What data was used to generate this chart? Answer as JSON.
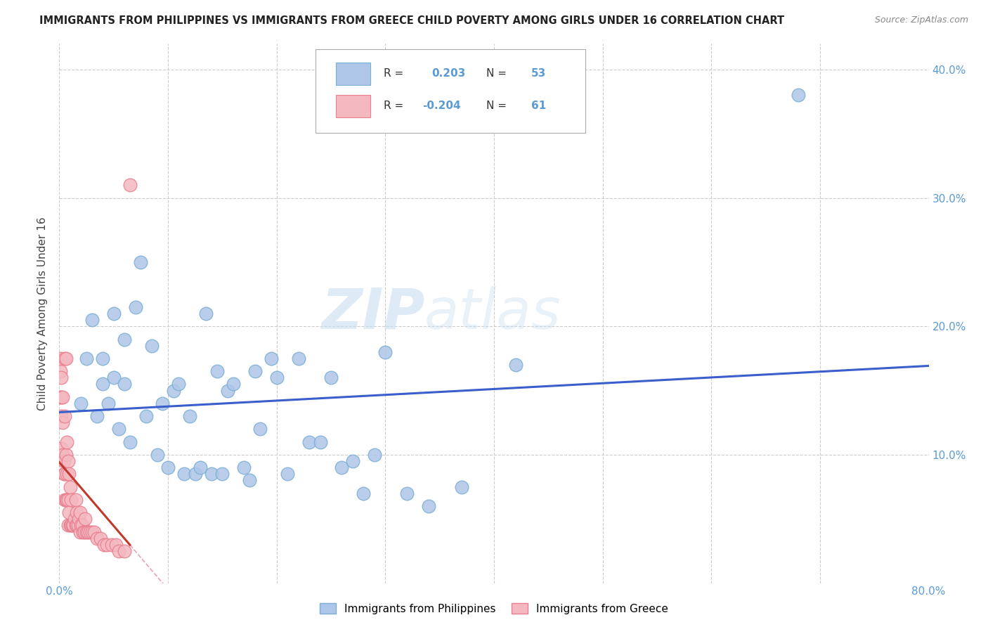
{
  "title": "IMMIGRANTS FROM PHILIPPINES VS IMMIGRANTS FROM GREECE CHILD POVERTY AMONG GIRLS UNDER 16 CORRELATION CHART",
  "source": "Source: ZipAtlas.com",
  "ylabel": "Child Poverty Among Girls Under 16",
  "xlim": [
    0,
    0.8
  ],
  "ylim": [
    0,
    0.42
  ],
  "xtick_positions": [
    0.0,
    0.1,
    0.2,
    0.3,
    0.4,
    0.5,
    0.6,
    0.7,
    0.8
  ],
  "xticklabels": [
    "0.0%",
    "",
    "",
    "",
    "",
    "",
    "",
    "",
    "80.0%"
  ],
  "ytick_positions": [
    0.0,
    0.1,
    0.2,
    0.3,
    0.4
  ],
  "yticklabels": [
    "",
    "10.0%",
    "20.0%",
    "30.0%",
    "40.0%"
  ],
  "philippines_color": "#aec6e8",
  "greece_color": "#f4b8c1",
  "philippines_edge": "#7bafd4",
  "greece_edge": "#e8808f",
  "trendline_philippines_color": "#3a5fcd",
  "trendline_greece_solid_color": "#c0392b",
  "trendline_greece_dash_color": "#f0a0b0",
  "watermark_zip": "ZIP",
  "watermark_atlas": "atlas",
  "philippines_x": [
    0.02,
    0.025,
    0.03,
    0.035,
    0.04,
    0.04,
    0.045,
    0.05,
    0.05,
    0.055,
    0.06,
    0.06,
    0.065,
    0.07,
    0.075,
    0.08,
    0.085,
    0.09,
    0.095,
    0.1,
    0.105,
    0.11,
    0.115,
    0.12,
    0.125,
    0.13,
    0.135,
    0.14,
    0.145,
    0.15,
    0.155,
    0.16,
    0.17,
    0.175,
    0.18,
    0.185,
    0.195,
    0.2,
    0.21,
    0.22,
    0.23,
    0.24,
    0.25,
    0.26,
    0.27,
    0.28,
    0.29,
    0.3,
    0.32,
    0.34,
    0.37,
    0.42,
    0.68
  ],
  "philippines_y": [
    0.14,
    0.175,
    0.205,
    0.13,
    0.155,
    0.175,
    0.14,
    0.16,
    0.21,
    0.12,
    0.155,
    0.19,
    0.11,
    0.215,
    0.25,
    0.13,
    0.185,
    0.1,
    0.14,
    0.09,
    0.15,
    0.155,
    0.085,
    0.13,
    0.085,
    0.09,
    0.21,
    0.085,
    0.165,
    0.085,
    0.15,
    0.155,
    0.09,
    0.08,
    0.165,
    0.12,
    0.175,
    0.16,
    0.085,
    0.175,
    0.11,
    0.11,
    0.16,
    0.09,
    0.095,
    0.07,
    0.1,
    0.18,
    0.07,
    0.06,
    0.075,
    0.17,
    0.38
  ],
  "greece_x": [
    0.001,
    0.001,
    0.001,
    0.002,
    0.002,
    0.002,
    0.002,
    0.003,
    0.003,
    0.003,
    0.004,
    0.004,
    0.005,
    0.005,
    0.005,
    0.005,
    0.006,
    0.006,
    0.006,
    0.007,
    0.007,
    0.007,
    0.008,
    0.008,
    0.008,
    0.009,
    0.009,
    0.01,
    0.01,
    0.011,
    0.011,
    0.012,
    0.013,
    0.014,
    0.015,
    0.015,
    0.016,
    0.016,
    0.017,
    0.018,
    0.019,
    0.019,
    0.02,
    0.021,
    0.022,
    0.023,
    0.024,
    0.025,
    0.026,
    0.028,
    0.03,
    0.032,
    0.035,
    0.038,
    0.041,
    0.044,
    0.048,
    0.052,
    0.055,
    0.06,
    0.065
  ],
  "greece_y": [
    0.145,
    0.165,
    0.175,
    0.105,
    0.13,
    0.145,
    0.16,
    0.1,
    0.125,
    0.145,
    0.085,
    0.095,
    0.065,
    0.085,
    0.13,
    0.175,
    0.065,
    0.1,
    0.175,
    0.065,
    0.085,
    0.11,
    0.045,
    0.065,
    0.095,
    0.055,
    0.085,
    0.045,
    0.075,
    0.045,
    0.065,
    0.045,
    0.045,
    0.05,
    0.045,
    0.065,
    0.045,
    0.055,
    0.045,
    0.05,
    0.04,
    0.055,
    0.045,
    0.045,
    0.04,
    0.04,
    0.05,
    0.04,
    0.04,
    0.04,
    0.04,
    0.04,
    0.035,
    0.035,
    0.03,
    0.03,
    0.03,
    0.03,
    0.025,
    0.025,
    0.31
  ]
}
